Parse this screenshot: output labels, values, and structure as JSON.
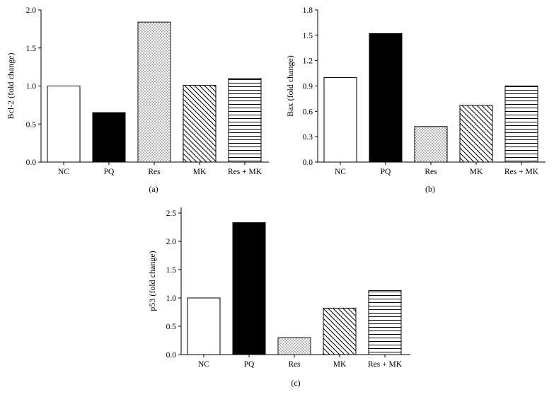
{
  "chart_data": [
    {
      "type": "bar",
      "panel_label": "(a)",
      "ylabel": "Bcl-2 (fold change)",
      "categories": [
        "NC",
        "PQ",
        "Res",
        "MK",
        "Res + MK"
      ],
      "values": [
        1.0,
        0.65,
        1.84,
        1.01,
        1.1
      ],
      "ylim": [
        0,
        2.0
      ],
      "yticks": [
        "0.0",
        "0.5",
        "1.0",
        "1.5",
        "2.0"
      ],
      "fills": [
        "empty",
        "solid",
        "dots",
        "diagonal",
        "horizontal"
      ]
    },
    {
      "type": "bar",
      "panel_label": "(b)",
      "ylabel": "Bax (fold change)",
      "categories": [
        "NC",
        "PQ",
        "Res",
        "MK",
        "Res + MK"
      ],
      "values": [
        1.0,
        1.52,
        0.42,
        0.67,
        0.9
      ],
      "ylim": [
        0,
        1.8
      ],
      "yticks": [
        "0.0",
        "0.3",
        "0.6",
        "0.9",
        "1.2",
        "1.5",
        "1.8"
      ],
      "fills": [
        "empty",
        "solid",
        "dots",
        "diagonal",
        "horizontal"
      ]
    },
    {
      "type": "bar",
      "panel_label": "(c)",
      "ylabel": "p53 (fold change)",
      "categories": [
        "NC",
        "PQ",
        "Res",
        "MK",
        "Res + MK"
      ],
      "values": [
        1.0,
        2.33,
        0.3,
        0.82,
        1.13
      ],
      "ylim": [
        0,
        2.6
      ],
      "yticks": [
        "0.0",
        "0.5",
        "1.0",
        "1.5",
        "2.0",
        "2.5"
      ],
      "fills": [
        "empty",
        "solid",
        "dots",
        "diagonal",
        "horizontal"
      ]
    }
  ]
}
